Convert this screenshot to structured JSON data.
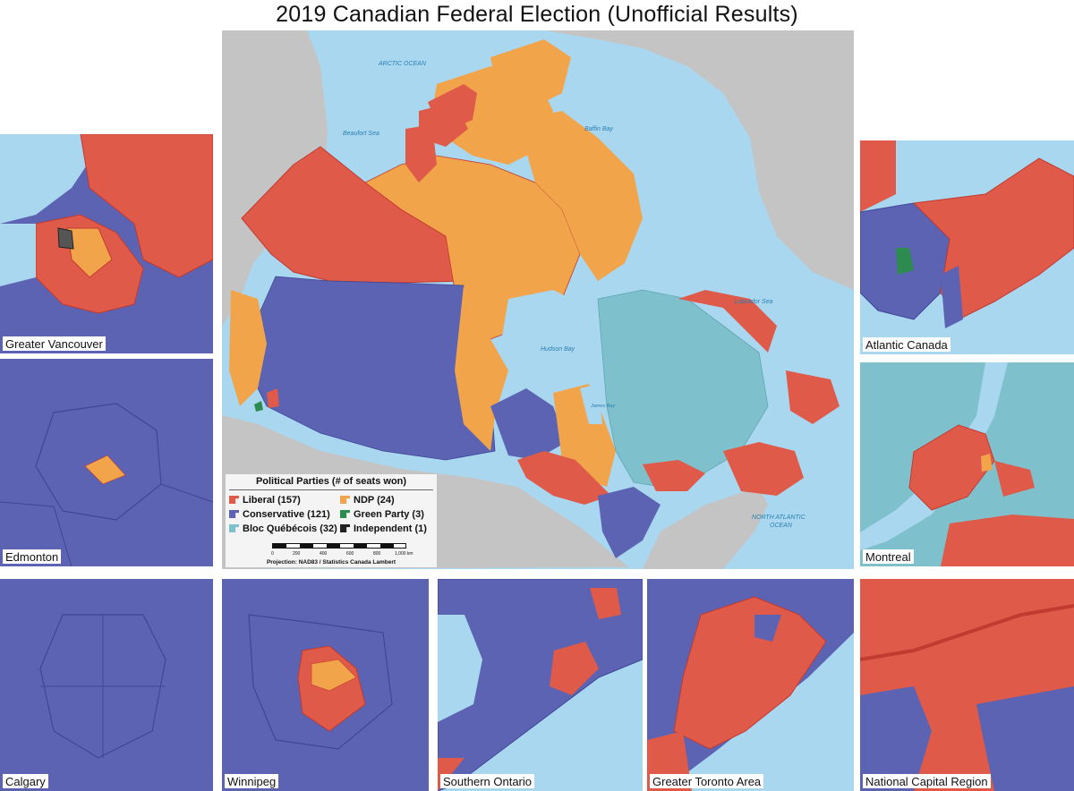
{
  "title": "2019 Canadian Federal Election (Unofficial Results)",
  "colors": {
    "liberal": "#e05a4a",
    "conservative": "#5b63b2",
    "ndp": "#f2a44a",
    "bloc": "#7ec1cc",
    "green": "#2e8b50",
    "independent": "#333333",
    "water": "#a9d7f0",
    "land_other": "#c4c4c4",
    "border": "#c23a30"
  },
  "water_labels": {
    "arctic": "ARCTIC OCEAN",
    "beaufort": "Beaufort Sea",
    "baffin": "Baffin Bay",
    "labrador": "Labrador Sea",
    "hudson": "Hudson Bay",
    "james": "James Bay",
    "atlantic_1": "NORTH ATLANTIC",
    "atlantic_2": "OCEAN"
  },
  "legend": {
    "title": "Political Parties (# of seats won)",
    "items": [
      {
        "label": "Liberal (157)",
        "color": "#e05a4a"
      },
      {
        "label": "Conservative (121)",
        "color": "#5b63b2"
      },
      {
        "label": "Bloc Québécois (32)",
        "color": "#7ec1cc"
      },
      {
        "label": "NDP (24)",
        "color": "#f2a44a"
      },
      {
        "label": "Green Party (3)",
        "color": "#2e8b50"
      },
      {
        "label": "Independent (1)",
        "color": "#222222"
      }
    ],
    "scale_ticks": [
      "0",
      "200",
      "400",
      "600",
      "800",
      "1,000 km"
    ],
    "projection": "Projection: NAD83 / Statistics Canada Lambert"
  },
  "insets": {
    "vancouver": "Greater Vancouver",
    "edmonton": "Edmonton",
    "calgary": "Calgary",
    "atlantic": "Atlantic Canada",
    "montreal": "Montreal",
    "winnipeg": "Winnipeg",
    "southern_ontario": "Southern Ontario",
    "toronto": "Greater Toronto Area",
    "ncr": "National Capital Region"
  }
}
